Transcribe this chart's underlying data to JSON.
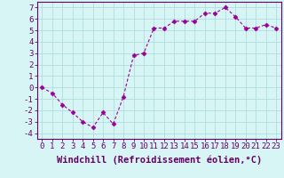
{
  "xlabel": "Windchill (Refroidissement éolien,°C)",
  "x": [
    0,
    1,
    2,
    3,
    4,
    5,
    6,
    7,
    8,
    9,
    10,
    11,
    12,
    13,
    14,
    15,
    16,
    17,
    18,
    19,
    20,
    21,
    22,
    23
  ],
  "y": [
    0.0,
    -0.5,
    -1.5,
    -2.2,
    -3.0,
    -3.5,
    -2.2,
    -3.2,
    -0.8,
    2.8,
    3.0,
    5.2,
    5.2,
    5.8,
    5.8,
    5.8,
    6.5,
    6.5,
    7.0,
    6.2,
    5.2,
    5.2,
    5.5,
    5.2
  ],
  "line_color": "#990099",
  "marker": "D",
  "marker_size": 2.5,
  "bg_color": "#d8f5f5",
  "grid_color": "#b0dede",
  "axis_color": "#660066",
  "xlim": [
    -0.5,
    23.5
  ],
  "ylim": [
    -4.5,
    7.5
  ],
  "yticks": [
    -4,
    -3,
    -2,
    -1,
    0,
    1,
    2,
    3,
    4,
    5,
    6,
    7
  ],
  "xticks": [
    0,
    1,
    2,
    3,
    4,
    5,
    6,
    7,
    8,
    9,
    10,
    11,
    12,
    13,
    14,
    15,
    16,
    17,
    18,
    19,
    20,
    21,
    22,
    23
  ],
  "tick_fontsize": 6.5,
  "label_fontsize": 7.5
}
